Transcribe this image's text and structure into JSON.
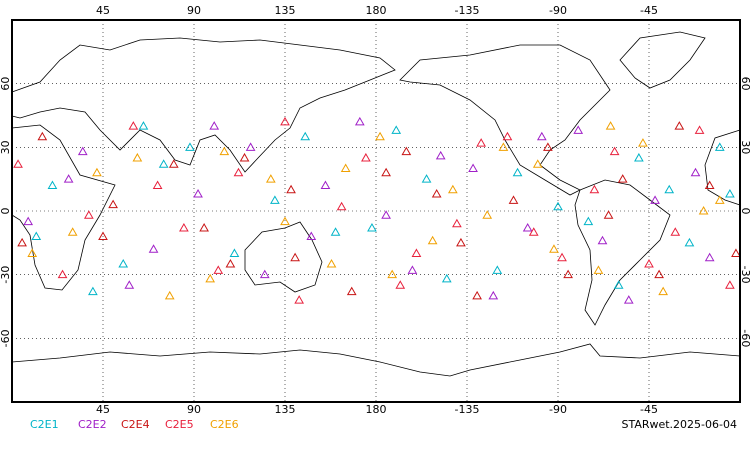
{
  "chart_data": {
    "type": "scatter",
    "map": "world",
    "grid": true,
    "xlim": [
      0,
      360
    ],
    "ylim": [
      -90,
      90
    ],
    "xticks": [
      45,
      90,
      135,
      180,
      {
        "value": 225,
        "label": "-135"
      },
      {
        "value": 270,
        "label": "-90"
      },
      {
        "value": 315,
        "label": "-45"
      }
    ],
    "yticks": [
      60,
      30,
      0,
      -30,
      -60
    ],
    "note": "STARwet.2025-06-04",
    "series": [
      {
        "name": "C2E1",
        "color": "#00b4c8",
        "x": [
          20,
          55,
          88,
          130,
          160,
          190,
          215,
          250,
          285,
          310,
          335,
          355,
          40,
          75,
          110,
          145,
          178,
          205,
          240,
          270,
          300,
          325,
          350,
          12,
          65
        ],
        "y": [
          12,
          -25,
          30,
          5,
          -10,
          38,
          -32,
          18,
          -5,
          25,
          -15,
          8,
          -38,
          22,
          -20,
          35,
          -8,
          15,
          -28,
          2,
          -35,
          10,
          30,
          -12,
          40
        ]
      },
      {
        "name": "C2E2",
        "color": "#a020c8",
        "x": [
          8,
          35,
          70,
          100,
          125,
          155,
          185,
          212,
          238,
          262,
          292,
          318,
          345,
          28,
          58,
          92,
          118,
          148,
          172,
          198,
          228,
          255,
          280,
          305,
          338
        ],
        "y": [
          -5,
          28,
          -18,
          40,
          -30,
          12,
          -2,
          26,
          -40,
          35,
          -14,
          5,
          -22,
          15,
          -35,
          8,
          30,
          -12,
          42,
          -28,
          20,
          -8,
          38,
          -42,
          18
        ]
      },
      {
        "name": "C2E4",
        "color": "#c81414",
        "x": [
          15,
          45,
          80,
          108,
          138,
          168,
          195,
          222,
          248,
          275,
          302,
          330,
          358,
          50,
          95,
          140,
          185,
          230,
          265,
          295,
          320,
          345,
          5,
          115,
          210
        ],
        "y": [
          35,
          -12,
          22,
          -25,
          10,
          -38,
          28,
          -15,
          5,
          -30,
          15,
          40,
          -20,
          3,
          -8,
          -22,
          18,
          -40,
          30,
          -2,
          -30,
          12,
          -15,
          25,
          8
        ]
      },
      {
        "name": "C2E5",
        "color": "#e8203c",
        "x": [
          25,
          60,
          85,
          112,
          142,
          175,
          200,
          232,
          258,
          288,
          315,
          340,
          3,
          38,
          72,
          102,
          135,
          163,
          192,
          220,
          245,
          272,
          298,
          328,
          355
        ],
        "y": [
          -30,
          40,
          -8,
          18,
          -42,
          25,
          -20,
          32,
          -10,
          10,
          -25,
          38,
          22,
          -2,
          12,
          -28,
          42,
          2,
          -35,
          -6,
          35,
          -22,
          28,
          -10,
          -35
        ]
      },
      {
        "name": "C2E6",
        "color": "#f0a000",
        "x": [
          10,
          42,
          78,
          105,
          135,
          165,
          188,
          218,
          243,
          268,
          296,
          322,
          350,
          30,
          62,
          98,
          128,
          158,
          182,
          208,
          235,
          260,
          290,
          312,
          342
        ],
        "y": [
          -20,
          18,
          -40,
          28,
          -5,
          20,
          -30,
          10,
          30,
          -18,
          40,
          -38,
          5,
          -10,
          25,
          -32,
          15,
          -25,
          35,
          -14,
          -2,
          22,
          -28,
          32,
          0
        ]
      }
    ]
  }
}
